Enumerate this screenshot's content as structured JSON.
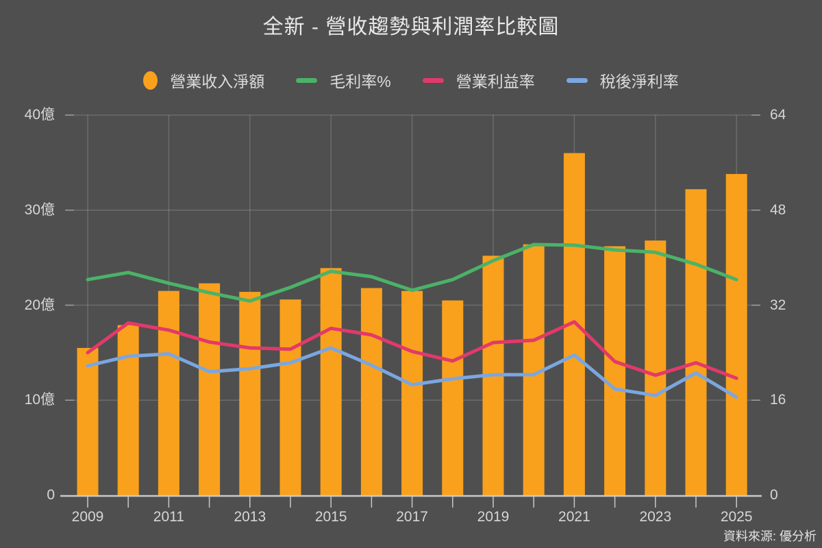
{
  "title": "全新 - 營收趨勢與利潤率比較圖",
  "source_note": "資料來源: 優分析",
  "colors": {
    "background": "#4F4F4F",
    "bar": "#F9A11C",
    "gross_margin_line": "#4BB268",
    "operating_margin_line": "#E2396B",
    "net_margin_line": "#7BA6E0",
    "grid": "rgba(255,255,255,0.17)",
    "axis_line": "#C9C9C9",
    "axis_text": "#D6D6D6",
    "title_text": "#E9E9E9"
  },
  "legend": {
    "items": [
      {
        "label": "營業收入淨額",
        "marker": "ellipse",
        "color_key": "bar"
      },
      {
        "label": "毛利率%",
        "marker": "line",
        "color_key": "gross_margin_line"
      },
      {
        "label": "營業利益率",
        "marker": "line",
        "color_key": "operating_margin_line"
      },
      {
        "label": "稅後淨利率",
        "marker": "line",
        "color_key": "net_margin_line"
      }
    ]
  },
  "chart_data": {
    "type": "combo-bar-line",
    "x": [
      2009,
      2010,
      2011,
      2012,
      2013,
      2014,
      2015,
      2016,
      2017,
      2018,
      2019,
      2020,
      2021,
      2022,
      2023,
      2024,
      2025
    ],
    "x_axis_tick_labels": [
      "2009",
      "2011",
      "2013",
      "2015",
      "2017",
      "2019",
      "2021",
      "2023",
      "2025"
    ],
    "left_axis": {
      "unit": "億",
      "min": 0,
      "max": 40,
      "tick_values": [
        0,
        10,
        20,
        30,
        40
      ],
      "tick_labels": [
        "0",
        "10億",
        "20億",
        "30億",
        "40億"
      ]
    },
    "right_axis": {
      "min": 0,
      "max": 64,
      "tick_values": [
        0,
        16,
        32,
        48,
        64
      ],
      "tick_labels": [
        "0",
        "16",
        "32",
        "48",
        "64"
      ]
    },
    "grid": true,
    "legend_position": "top",
    "bar_series": {
      "name": "營業收入淨額",
      "axis": "left",
      "unit": "億",
      "values": [
        15.5,
        17.9,
        21.5,
        22.3,
        21.4,
        20.6,
        23.9,
        21.8,
        21.5,
        20.5,
        25.2,
        26.4,
        36.0,
        26.2,
        26.8,
        32.2,
        33.8
      ]
    },
    "line_series": [
      {
        "name": "毛利率%",
        "axis": "right",
        "values": [
          36.3,
          37.5,
          35.7,
          34.1,
          32.7,
          35.0,
          37.7,
          36.8,
          34.5,
          36.3,
          39.5,
          42.2,
          42.1,
          41.3,
          40.9,
          38.9,
          36.3
        ]
      },
      {
        "name": "營業利益率",
        "axis": "right",
        "values": [
          24.0,
          29.0,
          27.8,
          25.8,
          24.8,
          24.6,
          28.1,
          27.0,
          24.2,
          22.6,
          25.7,
          26.1,
          29.2,
          22.5,
          20.2,
          22.3,
          19.7
        ]
      },
      {
        "name": "稅後淨利率",
        "axis": "right",
        "values": [
          21.8,
          23.4,
          23.8,
          20.8,
          21.3,
          22.3,
          24.8,
          21.9,
          18.6,
          19.6,
          20.3,
          20.3,
          23.6,
          17.9,
          16.8,
          20.6,
          16.5
        ]
      }
    ]
  }
}
